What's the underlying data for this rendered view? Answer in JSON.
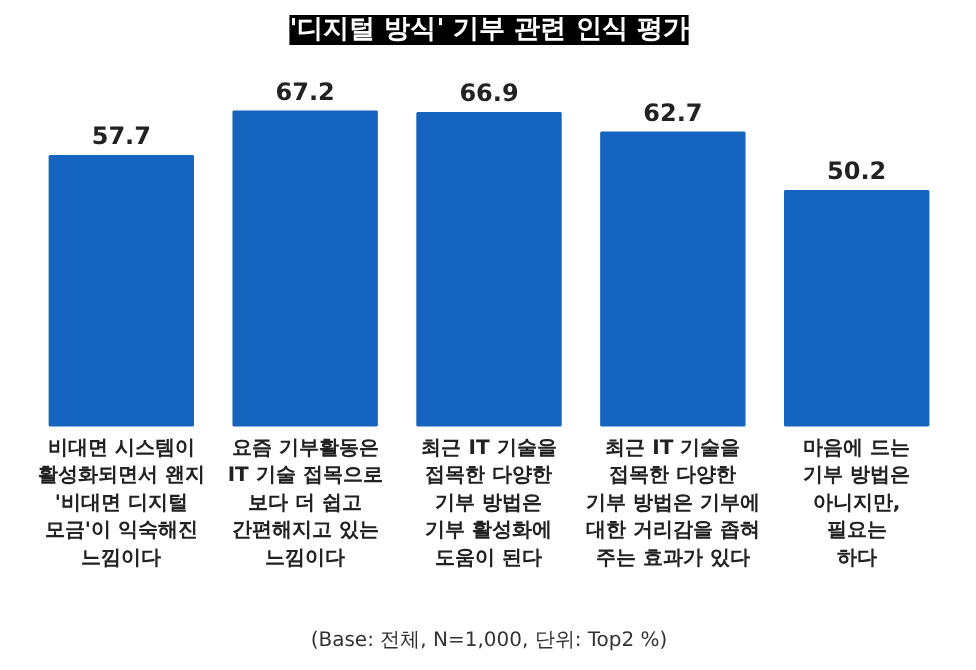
{
  "chart_data": {
    "type": "bar",
    "title": "'디지털 방식' 기부 관련 인식 평가",
    "categories": [
      "비대면 시스템이\n활성화되면서 왠지\n'비대면 디지털\n모금'이 익숙해진\n느낌이다",
      "요즘 기부활동은\nIT 기술 접목으로\n보다 더 쉽고\n간편해지고 있는\n느낌이다",
      "최근 IT 기술을\n접목한 다양한\n기부 방법은\n기부 활성화에\n도움이 된다",
      "최근 IT 기술을\n접목한 다양한\n기부 방법은 기부에\n대한 거리감을 좁혀\n주는 효과가 있다",
      "마음에 드는\n기부 방법은\n아니지만,\n필요는\n하다"
    ],
    "values": [
      57.7,
      67.2,
      66.9,
      62.7,
      50.2
    ],
    "color": "#1565c0",
    "data_labels": true,
    "annotations": [
      "(Base: 전체, N=1,000, 단위: Top2 %)"
    ]
  }
}
